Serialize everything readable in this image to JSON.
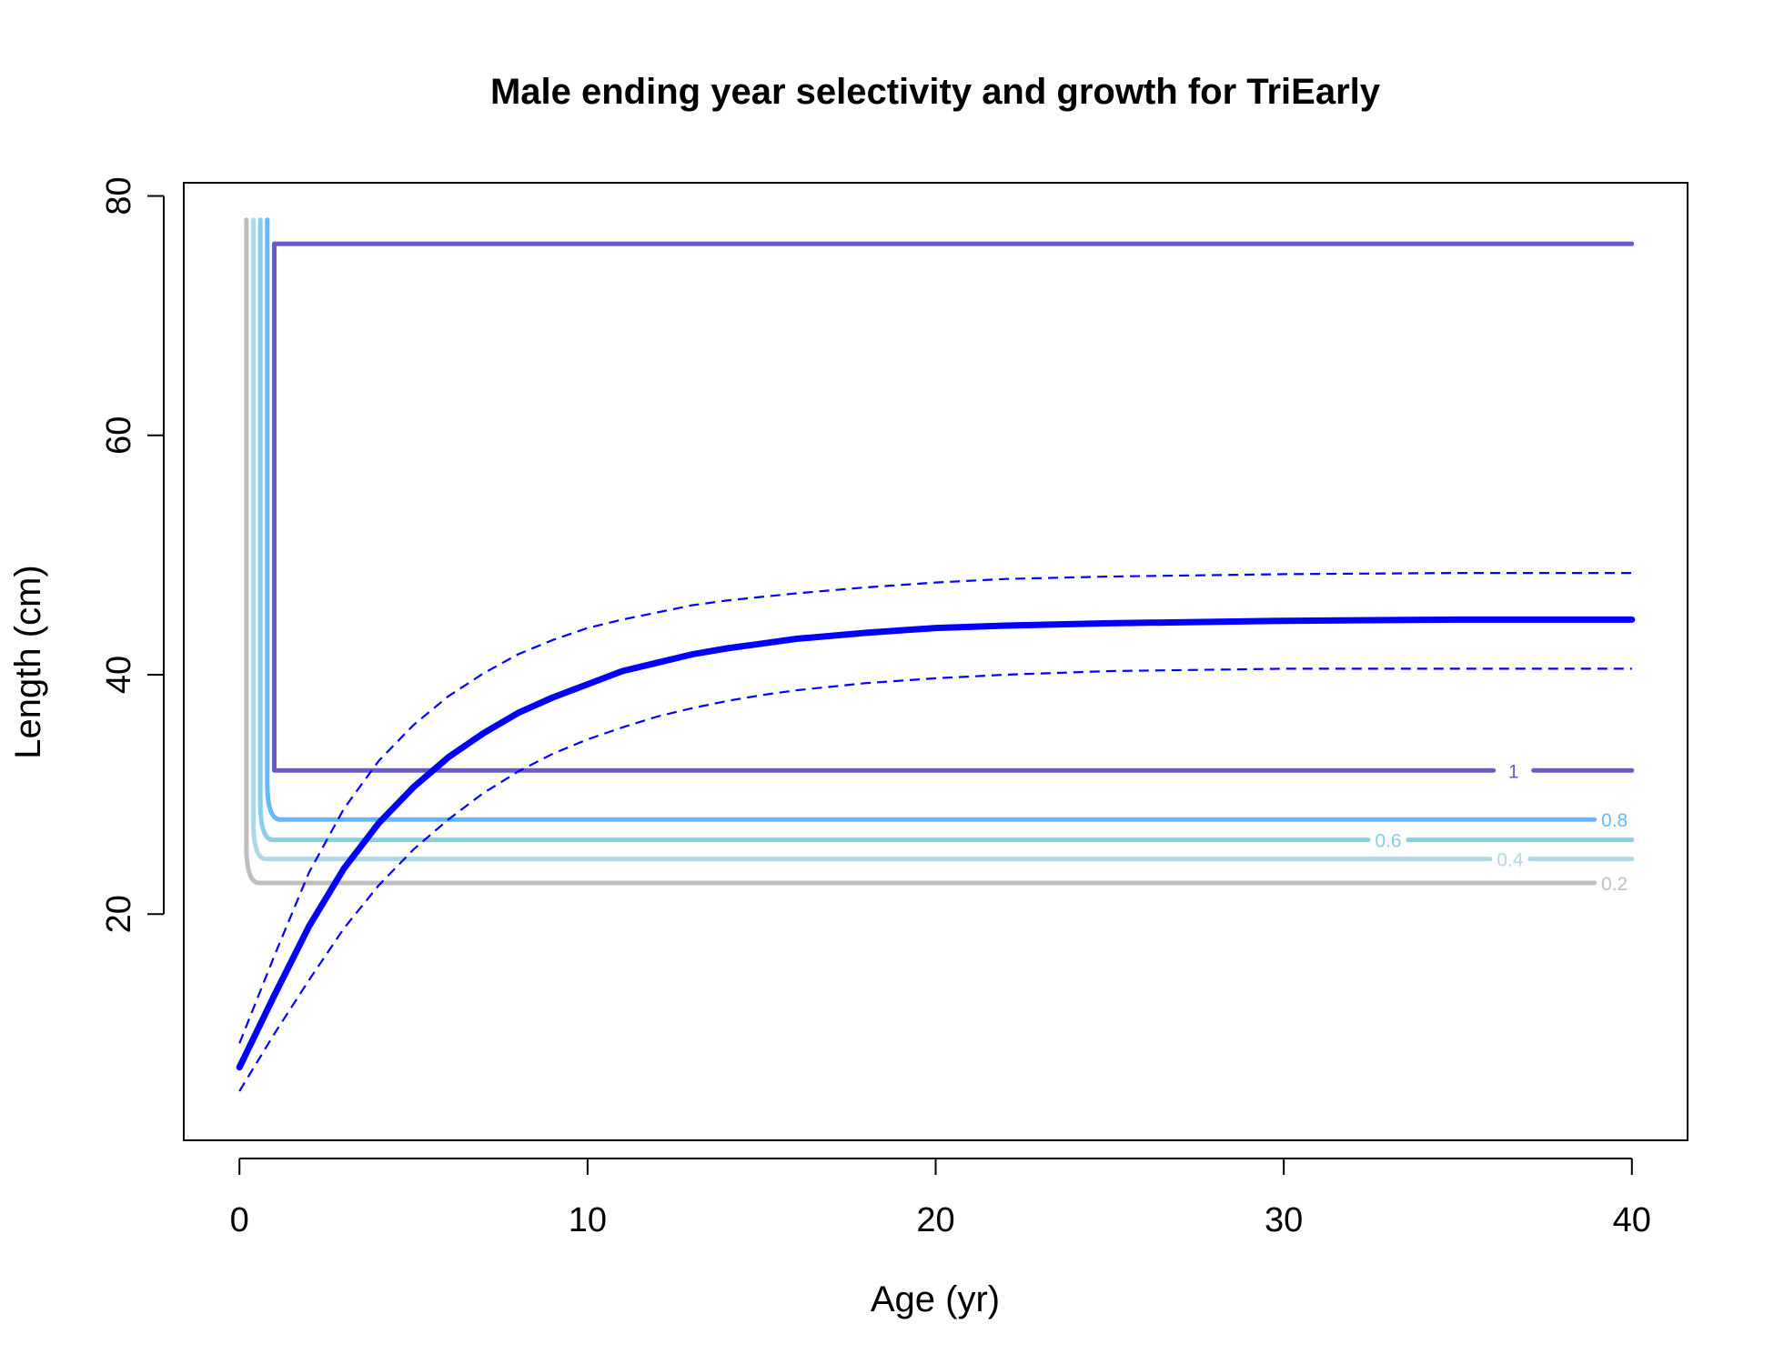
{
  "chart_data": {
    "type": "line",
    "title": "Male ending year selectivity and growth for TriEarly",
    "xlabel": "Age (yr)",
    "ylabel": "Length (cm)",
    "xlim": [
      -1.6,
      41.6
    ],
    "ylim": [
      1.1,
      81.1
    ],
    "x_ticks": [
      "0",
      "10",
      "20",
      "30",
      "40"
    ],
    "y_ticks": [
      "20",
      "40",
      "60",
      "80"
    ],
    "growth": {
      "name": "mean length at age",
      "color": "#0000FF",
      "ages": [
        0,
        1,
        2,
        3,
        4,
        5,
        6,
        7,
        8,
        9,
        10,
        11,
        12,
        13,
        14,
        15,
        16,
        18,
        20,
        22,
        25,
        30,
        35,
        40
      ],
      "mean": [
        7.2,
        13.2,
        19.0,
        23.8,
        27.6,
        30.6,
        33.1,
        35.1,
        36.8,
        38.1,
        39.2,
        40.3,
        41.0,
        41.7,
        42.2,
        42.6,
        43.0,
        43.5,
        43.9,
        44.1,
        44.3,
        44.5,
        44.6,
        44.6
      ],
      "upper": [
        9.2,
        16.5,
        23.5,
        28.8,
        32.8,
        35.8,
        38.2,
        40.1,
        41.7,
        42.9,
        43.9,
        44.6,
        45.2,
        45.8,
        46.2,
        46.5,
        46.8,
        47.3,
        47.7,
        48.0,
        48.2,
        48.4,
        48.5,
        48.5
      ],
      "lower": [
        5.2,
        10.0,
        14.5,
        18.8,
        22.4,
        25.4,
        27.9,
        30.1,
        31.9,
        33.4,
        34.6,
        35.6,
        36.5,
        37.2,
        37.8,
        38.3,
        38.7,
        39.3,
        39.7,
        40.0,
        40.3,
        40.5,
        40.5,
        40.5
      ]
    },
    "selectivity_contours": [
      {
        "level": "0.2",
        "color": "#BEBEBE",
        "corner_age": 0.2,
        "top_length": 78,
        "floor_length": 22.6,
        "label_age": 39.5
      },
      {
        "level": "0.4",
        "color": "#ADD8E6",
        "corner_age": 0.4,
        "top_length": 78,
        "floor_length": 24.6,
        "label_age": 36.5
      },
      {
        "level": "0.6",
        "color": "#87CEEB",
        "corner_age": 0.6,
        "top_length": 78,
        "floor_length": 26.2,
        "label_age": 33.0
      },
      {
        "level": "0.8",
        "color": "#63B8FF",
        "corner_age": 0.8,
        "top_length": 78,
        "floor_length": 27.9,
        "label_age": 39.5
      },
      {
        "level": "1",
        "color": "#6A5ACD",
        "corner_age": 1.0,
        "top_length": 76,
        "floor_length": 32.0,
        "label_age": 36.6,
        "closed_top": true
      }
    ]
  }
}
